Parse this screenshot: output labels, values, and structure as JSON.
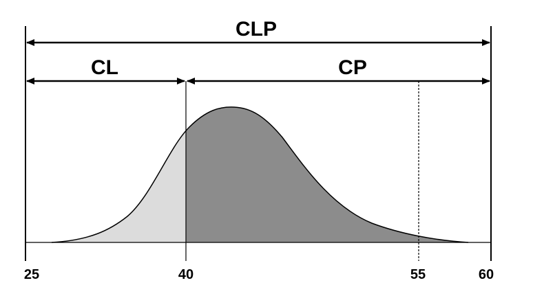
{
  "arrows": {
    "total": "CLP",
    "left": "CL",
    "right": "CP"
  },
  "axis": {
    "ticks": [
      "25",
      "40",
      "55",
      "60"
    ]
  }
}
